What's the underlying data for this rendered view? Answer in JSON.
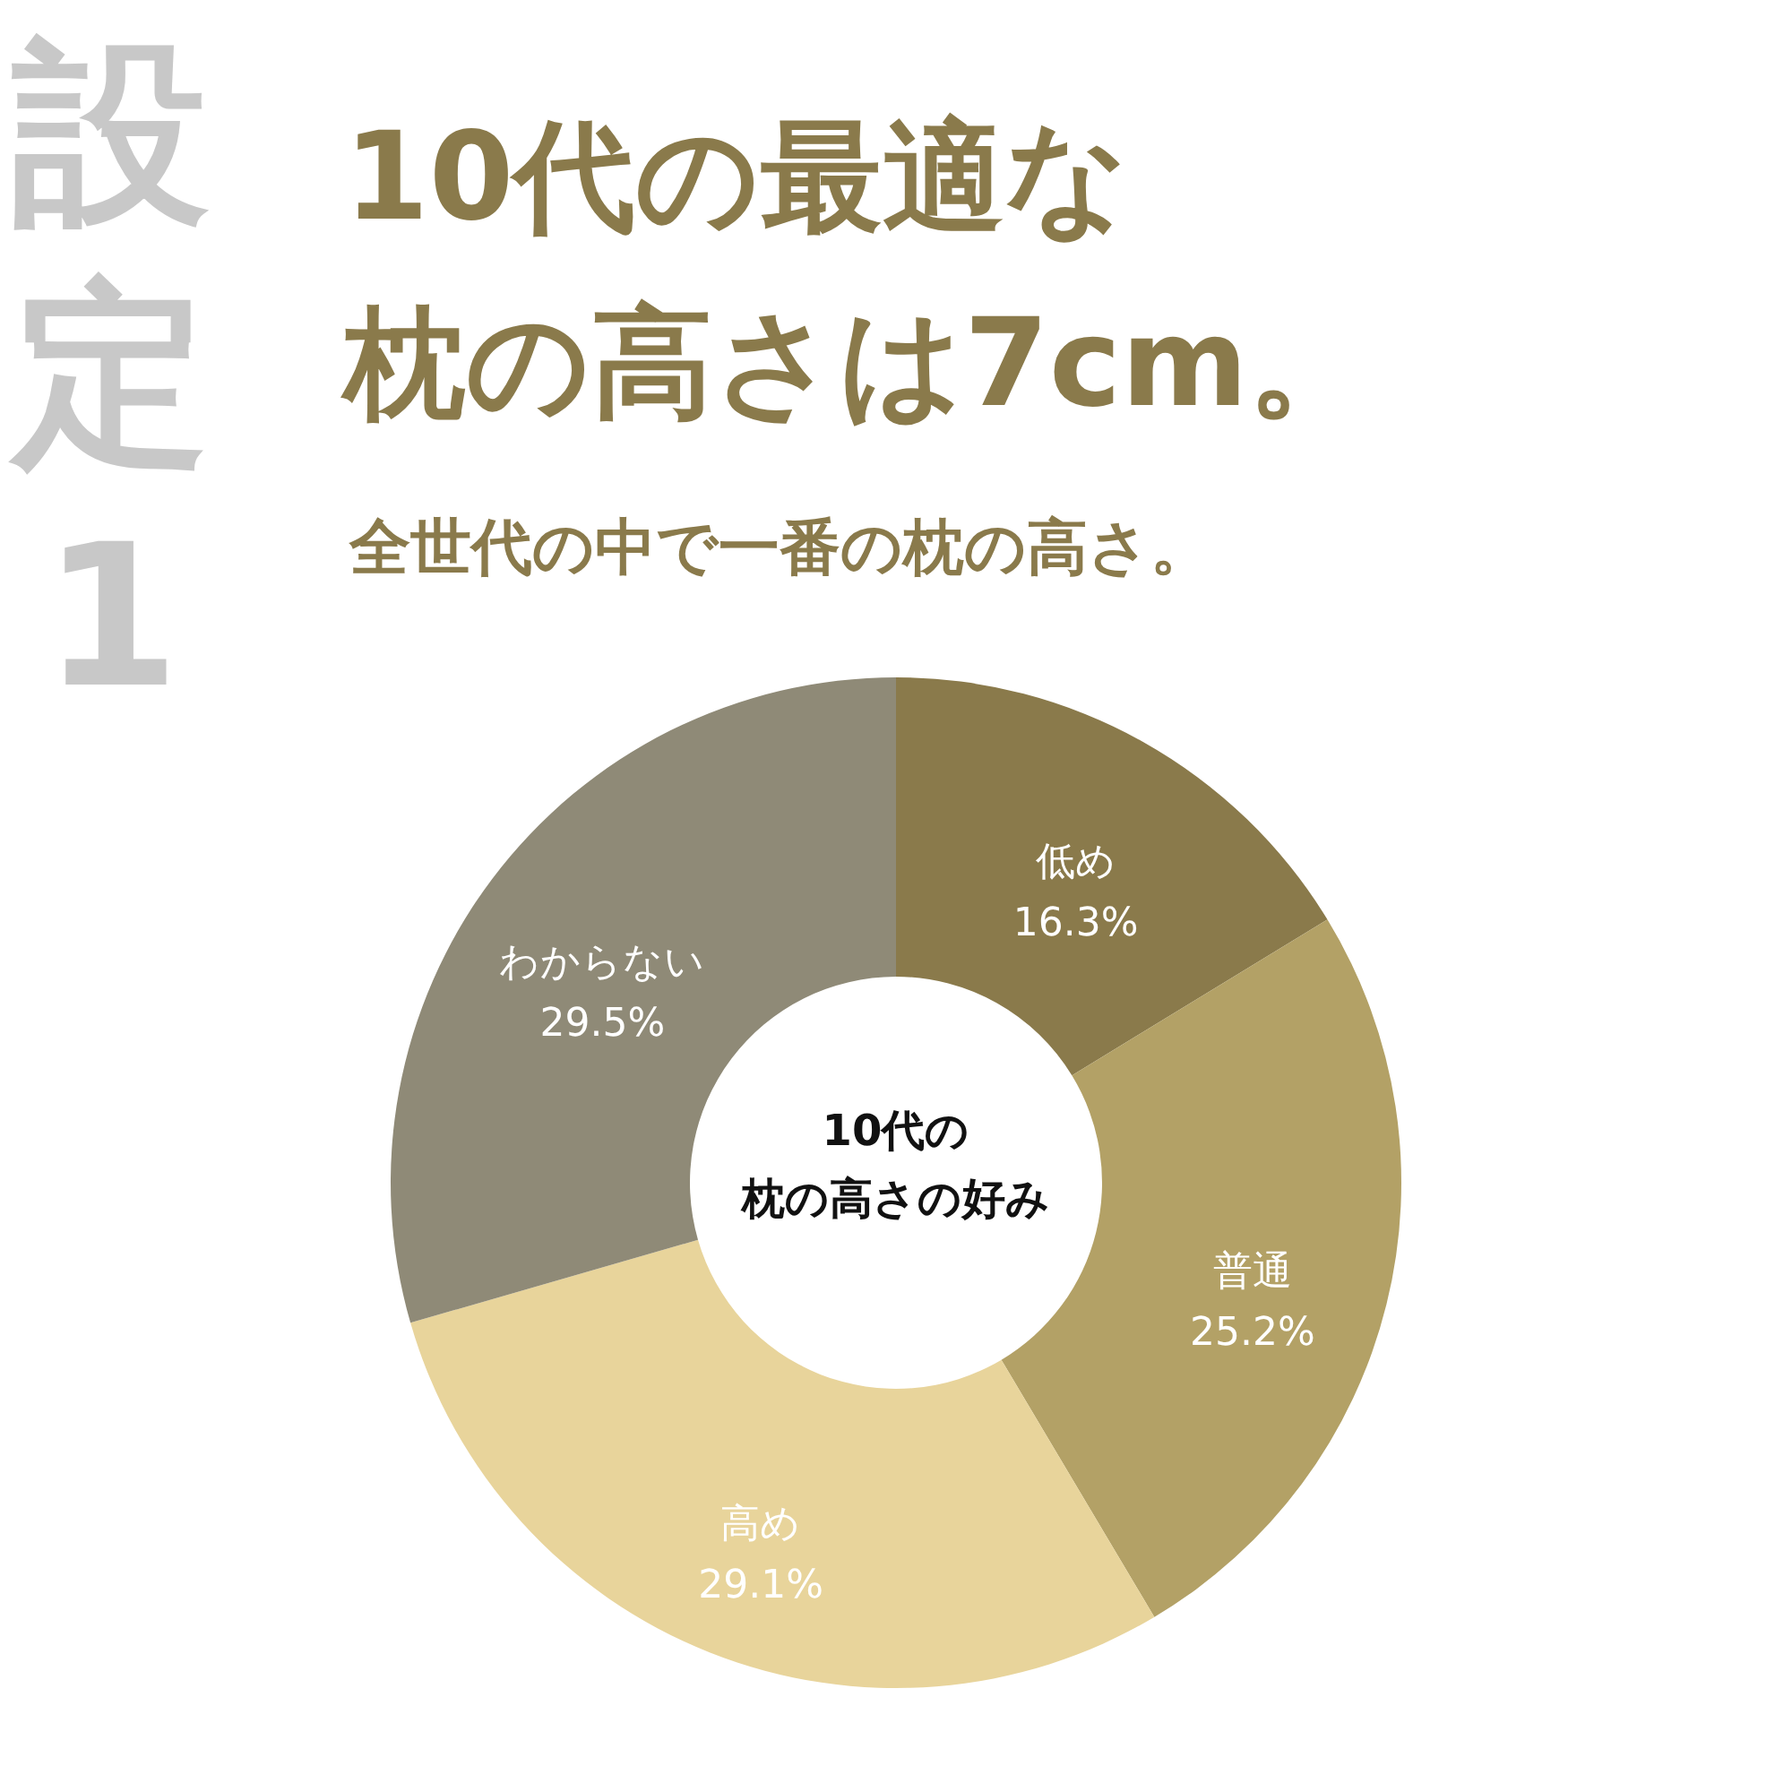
{
  "chart_data": {
    "type": "donut",
    "title": "10代の最適な枕の高さは7cm。",
    "subtitle": "全世代の中で一番の枕の高さ。",
    "categories": [
      "低め",
      "普通",
      "高め",
      "わからない"
    ],
    "values": [
      16.3,
      25.2,
      29.1,
      29.5
    ],
    "value_labels": [
      "16.3%",
      "25.2%",
      "29.1%",
      "29.5%"
    ],
    "colors": [
      "#8a7a4b",
      "#b3a166",
      "#e8d49b",
      "#8f8a77"
    ],
    "annotations": [
      "設定1",
      "10代の枕の高さの好み"
    ]
  }
}
